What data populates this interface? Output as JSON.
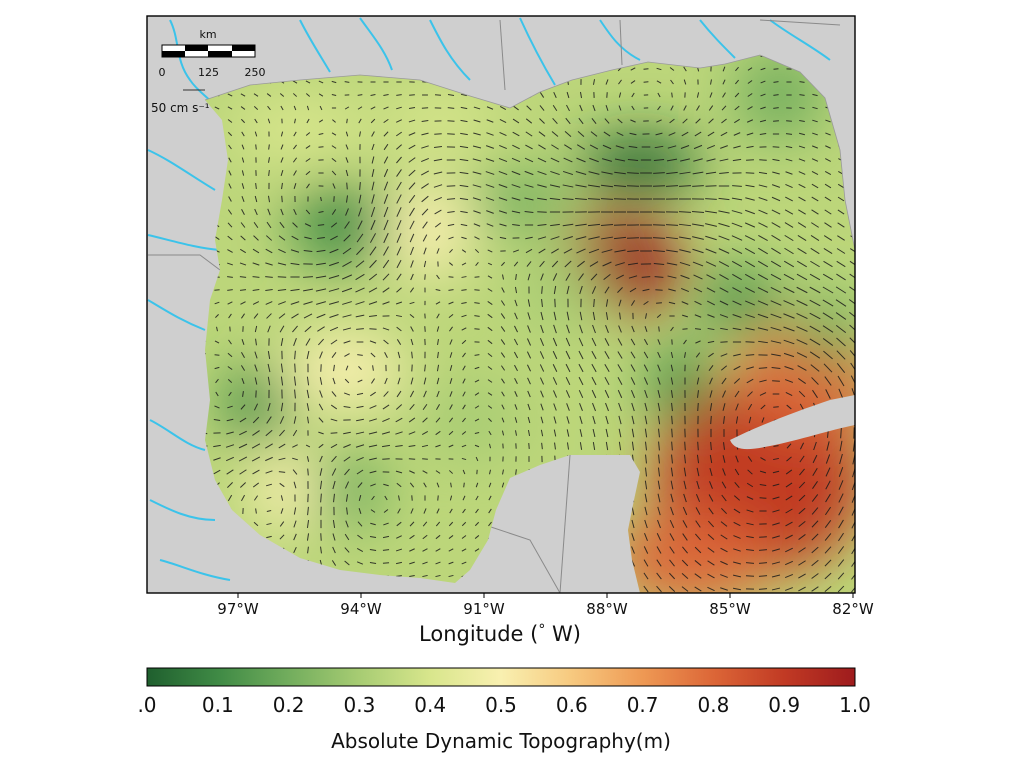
{
  "figure": {
    "scale_bar": {
      "unit": "km",
      "ticks": [
        "0",
        "125",
        "250"
      ]
    },
    "reference_vector": {
      "label": "50 cm s⁻¹"
    },
    "x_axis": {
      "title": "Longitude (",
      "title_symbol": "°",
      "title_end": " W)",
      "tick_labels": [
        "97°W",
        "94°W",
        "91°W",
        "88°W",
        "85°W",
        "82°W"
      ]
    },
    "colorbar": {
      "title": "Absolute Dynamic Topography(m)",
      "tick_labels": [
        ".0",
        "0.1",
        "0.2",
        "0.3",
        "0.4",
        "0.5",
        "0.6",
        "0.7",
        "0.8",
        "0.9",
        "1.0"
      ],
      "colormap": [
        "#1f5f2e",
        "#3f8a45",
        "#72ad5d",
        "#a7cc73",
        "#d8e68c",
        "#f9f0b0",
        "#f7c97f",
        "#ee9954",
        "#dc6637",
        "#c13a24",
        "#9e1b1d"
      ]
    }
  }
}
